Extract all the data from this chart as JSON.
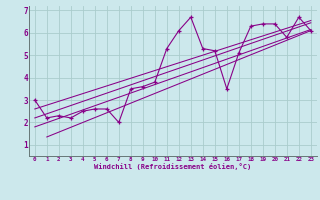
{
  "title": "",
  "xlabel": "Windchill (Refroidissement éolien,°C)",
  "ylabel": "",
  "background_color": "#cce8ec",
  "grid_color": "#aacccc",
  "line_color": "#880088",
  "xlim": [
    -0.5,
    23.5
  ],
  "ylim": [
    0.5,
    7.2
  ],
  "xtick_vals": [
    0,
    1,
    2,
    3,
    4,
    5,
    6,
    7,
    8,
    9,
    10,
    11,
    12,
    13,
    14,
    15,
    16,
    17,
    18,
    19,
    20,
    21,
    22,
    23
  ],
  "xtick_labels": [
    "0",
    "1",
    "2",
    "3",
    "4",
    "5",
    "6",
    "7",
    "8",
    "9",
    "10",
    "11",
    "12",
    "13",
    "14",
    "15",
    "16",
    "17",
    "18",
    "19",
    "20",
    "21",
    "22",
    "23"
  ],
  "ytick_vals": [
    1,
    2,
    3,
    4,
    5,
    6,
    7
  ],
  "ytick_labels": [
    "1",
    "2",
    "3",
    "4",
    "5",
    "6",
    "7"
  ],
  "series": [
    [
      0,
      3.0
    ],
    [
      1,
      2.2
    ],
    [
      2,
      2.3
    ],
    [
      3,
      2.2
    ],
    [
      4,
      2.5
    ],
    [
      5,
      2.6
    ],
    [
      6,
      2.6
    ],
    [
      7,
      2.0
    ],
    [
      8,
      3.5
    ],
    [
      9,
      3.6
    ],
    [
      10,
      3.8
    ],
    [
      11,
      5.3
    ],
    [
      12,
      6.1
    ],
    [
      13,
      6.7
    ],
    [
      14,
      5.3
    ],
    [
      15,
      5.2
    ],
    [
      16,
      3.5
    ],
    [
      17,
      5.1
    ],
    [
      18,
      6.3
    ],
    [
      19,
      6.4
    ],
    [
      20,
      6.4
    ],
    [
      21,
      5.8
    ],
    [
      22,
      6.7
    ],
    [
      23,
      6.1
    ]
  ],
  "regression_lines": [
    [
      [
        0,
        23
      ],
      [
        1.8,
        6.15
      ]
    ],
    [
      [
        0,
        23
      ],
      [
        2.2,
        6.45
      ]
    ],
    [
      [
        0,
        23
      ],
      [
        2.6,
        6.55
      ]
    ],
    [
      [
        1,
        23
      ],
      [
        1.35,
        6.1
      ]
    ]
  ]
}
